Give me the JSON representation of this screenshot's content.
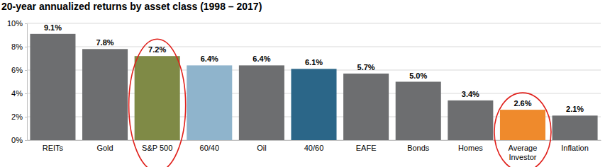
{
  "chart_data": {
    "type": "bar",
    "title": "20-year annualized returns by asset class (1998 – 2017)",
    "categories": [
      "REITs",
      "Gold",
      "S&P 500",
      "60/40",
      "Oil",
      "40/60",
      "EAFE",
      "Bonds",
      "Homes",
      "Average Investor",
      "Inflation"
    ],
    "values": [
      9.1,
      7.8,
      7.2,
      6.4,
      6.4,
      6.1,
      5.7,
      5.0,
      3.4,
      2.6,
      2.1
    ],
    "value_labels": [
      "9.1%",
      "7.8%",
      "7.2%",
      "6.4%",
      "6.4%",
      "6.1%",
      "5.7%",
      "5.0%",
      "3.4%",
      "2.6%",
      "2.1%"
    ],
    "colors": [
      "#6d6e70",
      "#6d6e70",
      "#7f8a46",
      "#8fb4cc",
      "#6d6e70",
      "#2b6688",
      "#6d6e70",
      "#6d6e70",
      "#6d6e70",
      "#ef8a2c",
      "#6d6e70"
    ],
    "ylim": [
      0,
      10
    ],
    "yticks": [
      {
        "value": 0,
        "label": "0%"
      },
      {
        "value": 2,
        "label": "2%"
      },
      {
        "value": 4,
        "label": "4%"
      },
      {
        "value": 6,
        "label": "6%"
      },
      {
        "value": 8,
        "label": "8%"
      },
      {
        "value": 10,
        "label": "10%"
      }
    ],
    "grid": true,
    "data_labels": true
  }
}
